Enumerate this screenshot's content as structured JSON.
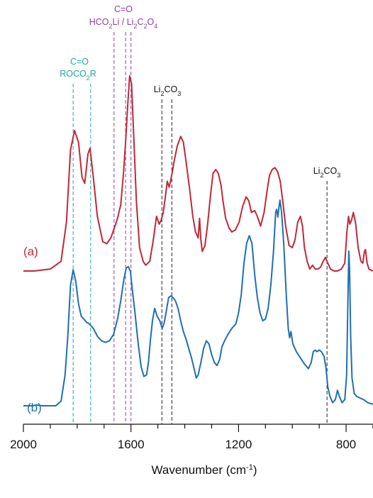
{
  "chart_data": {
    "type": "line",
    "xlabel": "Wavenumber (cm",
    "xlabel_sup": "-1",
    "xlabel_end": ")",
    "xlim": [
      2000,
      700
    ],
    "x_ticks": [
      {
        "value": 2000,
        "label": "2000"
      },
      {
        "value": 1600,
        "label": "1600"
      },
      {
        "value": 1200,
        "label": "1200"
      },
      {
        "value": 800,
        "label": "800"
      }
    ],
    "minor_tick_step": 100,
    "series": [
      {
        "name": "(a)",
        "color": "#c0283a",
        "points": [
          [
            2000,
            0.0
          ],
          [
            1960,
            0.0
          ],
          [
            1900,
            0.01
          ],
          [
            1860,
            0.05
          ],
          [
            1840,
            0.25
          ],
          [
            1825,
            0.62
          ],
          [
            1810,
            0.72
          ],
          [
            1795,
            0.66
          ],
          [
            1782,
            0.48
          ],
          [
            1772,
            0.45
          ],
          [
            1760,
            0.6
          ],
          [
            1752,
            0.63
          ],
          [
            1740,
            0.48
          ],
          [
            1725,
            0.28
          ],
          [
            1705,
            0.15
          ],
          [
            1690,
            0.14
          ],
          [
            1675,
            0.17
          ],
          [
            1662,
            0.22
          ],
          [
            1650,
            0.27
          ],
          [
            1638,
            0.34
          ],
          [
            1628,
            0.5
          ],
          [
            1620,
            0.66
          ],
          [
            1612,
            0.85
          ],
          [
            1605,
            1.0
          ],
          [
            1598,
            0.96
          ],
          [
            1590,
            0.7
          ],
          [
            1580,
            0.36
          ],
          [
            1568,
            0.12
          ],
          [
            1555,
            0.05
          ],
          [
            1545,
            0.03
          ],
          [
            1530,
            0.05
          ],
          [
            1518,
            0.15
          ],
          [
            1505,
            0.28
          ],
          [
            1495,
            0.24
          ],
          [
            1488,
            0.26
          ],
          [
            1480,
            0.3
          ],
          [
            1472,
            0.38
          ],
          [
            1465,
            0.46
          ],
          [
            1458,
            0.43
          ],
          [
            1450,
            0.48
          ],
          [
            1440,
            0.56
          ],
          [
            1428,
            0.64
          ],
          [
            1415,
            0.69
          ],
          [
            1405,
            0.66
          ],
          [
            1395,
            0.56
          ],
          [
            1382,
            0.42
          ],
          [
            1370,
            0.28
          ],
          [
            1360,
            0.2
          ],
          [
            1350,
            0.17
          ],
          [
            1345,
            0.27
          ],
          [
            1340,
            0.16
          ],
          [
            1335,
            0.1
          ],
          [
            1325,
            0.13
          ],
          [
            1315,
            0.24
          ],
          [
            1305,
            0.38
          ],
          [
            1295,
            0.5
          ],
          [
            1285,
            0.52
          ],
          [
            1275,
            0.5
          ],
          [
            1265,
            0.44
          ],
          [
            1258,
            0.36
          ],
          [
            1248,
            0.27
          ],
          [
            1235,
            0.22
          ],
          [
            1225,
            0.2
          ],
          [
            1212,
            0.21
          ],
          [
            1198,
            0.25
          ],
          [
            1185,
            0.33
          ],
          [
            1172,
            0.38
          ],
          [
            1162,
            0.36
          ],
          [
            1152,
            0.3
          ],
          [
            1140,
            0.31
          ],
          [
            1130,
            0.28
          ],
          [
            1118,
            0.23
          ],
          [
            1105,
            0.3
          ],
          [
            1095,
            0.4
          ],
          [
            1085,
            0.49
          ],
          [
            1075,
            0.52
          ],
          [
            1065,
            0.53
          ],
          [
            1055,
            0.51
          ],
          [
            1045,
            0.46
          ],
          [
            1035,
            0.35
          ],
          [
            1025,
            0.23
          ],
          [
            1012,
            0.13
          ],
          [
            1000,
            0.12
          ],
          [
            990,
            0.16
          ],
          [
            980,
            0.25
          ],
          [
            970,
            0.28
          ],
          [
            962,
            0.23
          ],
          [
            955,
            0.12
          ],
          [
            945,
            0.05
          ],
          [
            935,
            0.01
          ],
          [
            925,
            0.03
          ],
          [
            915,
            0.01
          ],
          [
            905,
            0.01
          ],
          [
            895,
            0.02
          ],
          [
            885,
            0.05
          ],
          [
            877,
            0.07
          ],
          [
            868,
            0.04
          ],
          [
            858,
            0.01
          ],
          [
            845,
            0.0
          ],
          [
            832,
            0.0
          ],
          [
            818,
            0.01
          ],
          [
            805,
            0.04
          ],
          [
            797,
            0.2
          ],
          [
            791,
            0.28
          ],
          [
            786,
            0.24
          ],
          [
            780,
            0.26
          ],
          [
            773,
            0.3
          ],
          [
            765,
            0.25
          ],
          [
            755,
            0.12
          ],
          [
            745,
            0.05
          ],
          [
            738,
            0.04
          ],
          [
            732,
            0.1
          ],
          [
            728,
            0.11
          ],
          [
            722,
            0.04
          ],
          [
            715,
            0.01
          ],
          [
            700,
            0.0
          ]
        ]
      },
      {
        "name": "(b)",
        "color": "#1f6fb0",
        "points": [
          [
            2000,
            0.0
          ],
          [
            1970,
            0.0
          ],
          [
            1950,
            0.005
          ],
          [
            1930,
            0.0
          ],
          [
            1880,
            0.0
          ],
          [
            1860,
            0.03
          ],
          [
            1845,
            0.2
          ],
          [
            1835,
            0.45
          ],
          [
            1825,
            0.78
          ],
          [
            1815,
            0.88
          ],
          [
            1805,
            0.8
          ],
          [
            1795,
            0.66
          ],
          [
            1785,
            0.58
          ],
          [
            1775,
            0.56
          ],
          [
            1765,
            0.54
          ],
          [
            1755,
            0.53
          ],
          [
            1740,
            0.5
          ],
          [
            1725,
            0.45
          ],
          [
            1710,
            0.42
          ],
          [
            1695,
            0.41
          ],
          [
            1680,
            0.42
          ],
          [
            1665,
            0.46
          ],
          [
            1650,
            0.56
          ],
          [
            1638,
            0.68
          ],
          [
            1626,
            0.82
          ],
          [
            1618,
            0.89
          ],
          [
            1610,
            0.9
          ],
          [
            1602,
            0.87
          ],
          [
            1595,
            0.75
          ],
          [
            1585,
            0.6
          ],
          [
            1573,
            0.4
          ],
          [
            1562,
            0.25
          ],
          [
            1552,
            0.19
          ],
          [
            1542,
            0.2
          ],
          [
            1535,
            0.28
          ],
          [
            1528,
            0.42
          ],
          [
            1520,
            0.55
          ],
          [
            1512,
            0.63
          ],
          [
            1503,
            0.58
          ],
          [
            1493,
            0.55
          ],
          [
            1484,
            0.5
          ],
          [
            1476,
            0.54
          ],
          [
            1468,
            0.62
          ],
          [
            1460,
            0.7
          ],
          [
            1452,
            0.71
          ],
          [
            1444,
            0.7
          ],
          [
            1435,
            0.68
          ],
          [
            1425,
            0.63
          ],
          [
            1415,
            0.55
          ],
          [
            1405,
            0.48
          ],
          [
            1395,
            0.43
          ],
          [
            1385,
            0.37
          ],
          [
            1375,
            0.31
          ],
          [
            1365,
            0.24
          ],
          [
            1357,
            0.18
          ],
          [
            1350,
            0.2
          ],
          [
            1340,
            0.28
          ],
          [
            1330,
            0.37
          ],
          [
            1320,
            0.42
          ],
          [
            1310,
            0.4
          ],
          [
            1300,
            0.33
          ],
          [
            1290,
            0.28
          ],
          [
            1280,
            0.26
          ],
          [
            1270,
            0.3
          ],
          [
            1262,
            0.38
          ],
          [
            1252,
            0.42
          ],
          [
            1240,
            0.46
          ],
          [
            1225,
            0.5
          ],
          [
            1210,
            0.53
          ],
          [
            1200,
            0.6
          ],
          [
            1190,
            0.72
          ],
          [
            1180,
            0.92
          ],
          [
            1170,
            1.05
          ],
          [
            1160,
            1.1
          ],
          [
            1150,
            1.05
          ],
          [
            1140,
            0.85
          ],
          [
            1130,
            0.7
          ],
          [
            1120,
            0.6
          ],
          [
            1110,
            0.55
          ],
          [
            1100,
            0.56
          ],
          [
            1090,
            0.63
          ],
          [
            1080,
            0.78
          ],
          [
            1070,
            1.0
          ],
          [
            1062,
            1.25
          ],
          [
            1058,
            1.27
          ],
          [
            1054,
            1.22
          ],
          [
            1050,
            1.28
          ],
          [
            1046,
            1.33
          ],
          [
            1040,
            1.25
          ],
          [
            1032,
            1.05
          ],
          [
            1022,
            0.7
          ],
          [
            1015,
            0.5
          ],
          [
            1010,
            0.44
          ],
          [
            1005,
            0.48
          ],
          [
            998,
            0.4
          ],
          [
            985,
            0.35
          ],
          [
            970,
            0.31
          ],
          [
            955,
            0.27
          ],
          [
            940,
            0.24
          ],
          [
            930,
            0.28
          ],
          [
            922,
            0.35
          ],
          [
            915,
            0.36
          ],
          [
            908,
            0.35
          ],
          [
            900,
            0.36
          ],
          [
            892,
            0.35
          ],
          [
            882,
            0.32
          ],
          [
            875,
            0.25
          ],
          [
            868,
            0.12
          ],
          [
            860,
            0.06
          ],
          [
            850,
            0.02
          ],
          [
            840,
            0.04
          ],
          [
            832,
            0.1
          ],
          [
            825,
            0.06
          ],
          [
            815,
            0.02
          ],
          [
            805,
            0.04
          ],
          [
            798,
            0.2
          ],
          [
            793,
            0.7
          ],
          [
            790,
            1.0
          ],
          [
            787,
            0.88
          ],
          [
            783,
            0.45
          ],
          [
            778,
            0.18
          ],
          [
            770,
            0.08
          ],
          [
            760,
            0.06
          ],
          [
            748,
            0.05
          ],
          [
            735,
            0.04
          ],
          [
            720,
            0.02
          ],
          [
            700,
            0.01
          ]
        ]
      }
    ],
    "reference_lines": [
      {
        "x": 1815,
        "color": "#1aa9a0"
      },
      {
        "x": 1750,
        "color": "#1aa9a0"
      },
      {
        "x": 1663,
        "color": "#8b3fa6"
      },
      {
        "x": 1620,
        "color": "#8b3fa6"
      },
      {
        "x": 1600,
        "color": "#8b3fa6"
      },
      {
        "x": 1485,
        "color": "#222222"
      },
      {
        "x": 1448,
        "color": "#222222"
      },
      {
        "x": 871,
        "color": "#222222"
      }
    ],
    "annotations": {
      "teal_line1": "C=O",
      "teal_line2_parts": [
        "ROCO",
        "2",
        "R"
      ],
      "purple_line1": "C=O",
      "purple_line2_parts": [
        "HCO",
        "2",
        "Li / Li",
        "2",
        "C",
        "2",
        "O",
        "4"
      ],
      "li2co3_parts": [
        "Li",
        "2",
        "CO",
        "3"
      ]
    }
  }
}
